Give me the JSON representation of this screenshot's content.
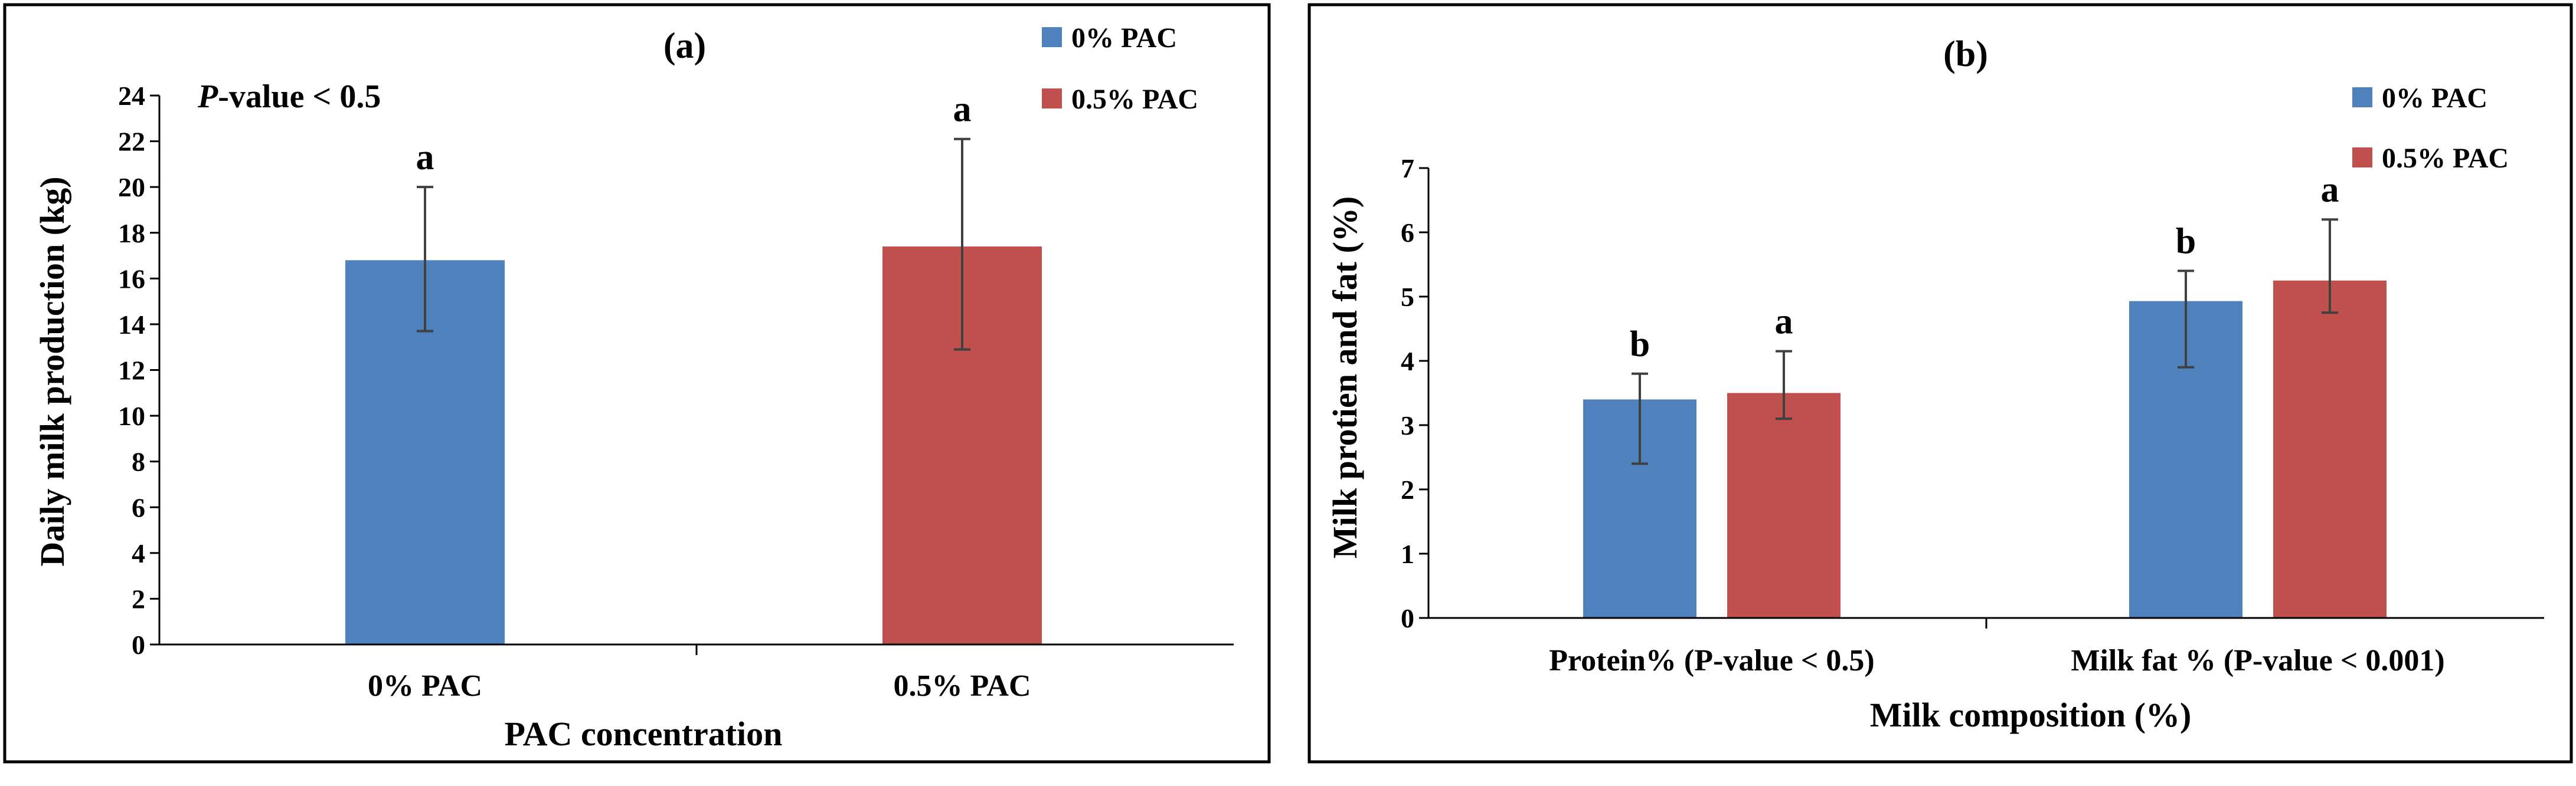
{
  "colors": {
    "series_0": "#4F81BD",
    "series_1": "#C0504D"
  },
  "chart_data": [
    {
      "type": "bar",
      "title": "(a)",
      "annotation_italic": "P",
      "annotation_rest": "-value < 0.5",
      "xlabel": "PAC concentration",
      "ylabel": "Daily milk production (kg)",
      "ylim": [
        0,
        24
      ],
      "ytick_step": 2,
      "yticks": [
        "0",
        "2",
        "4",
        "6",
        "8",
        "10",
        "12",
        "14",
        "16",
        "18",
        "20",
        "22",
        "24"
      ],
      "categories": [
        "0% PAC",
        "0.5% PAC"
      ],
      "values": [
        16.8,
        17.4
      ],
      "error_high": [
        20.0,
        22.1
      ],
      "error_low": [
        13.7,
        12.9
      ],
      "letters": [
        "a",
        "a"
      ],
      "legend": [
        "0% PAC",
        "0.5% PAC"
      ]
    },
    {
      "type": "bar",
      "title": "(b)",
      "xlabel": "Milk composition (%)",
      "ylabel": "Milk protien and fat (%)",
      "ylim": [
        0,
        7
      ],
      "ytick_step": 1,
      "yticks": [
        "0",
        "1",
        "2",
        "3",
        "4",
        "5",
        "6",
        "7"
      ],
      "categories": [
        "Protein% (P-value < 0.5)",
        "Milk fat % (P-value < 0.001)"
      ],
      "series": [
        {
          "name": "0% PAC",
          "values": [
            3.4,
            4.93
          ],
          "error_high": [
            3.8,
            5.4
          ],
          "error_low": [
            2.4,
            3.9
          ],
          "letters": [
            "b",
            "b"
          ]
        },
        {
          "name": "0.5% PAC",
          "values": [
            3.5,
            5.25
          ],
          "error_high": [
            4.15,
            6.2
          ],
          "error_low": [
            3.1,
            4.75
          ],
          "letters": [
            "a",
            "a"
          ]
        }
      ],
      "legend": [
        "0% PAC",
        "0.5% PAC"
      ]
    }
  ]
}
